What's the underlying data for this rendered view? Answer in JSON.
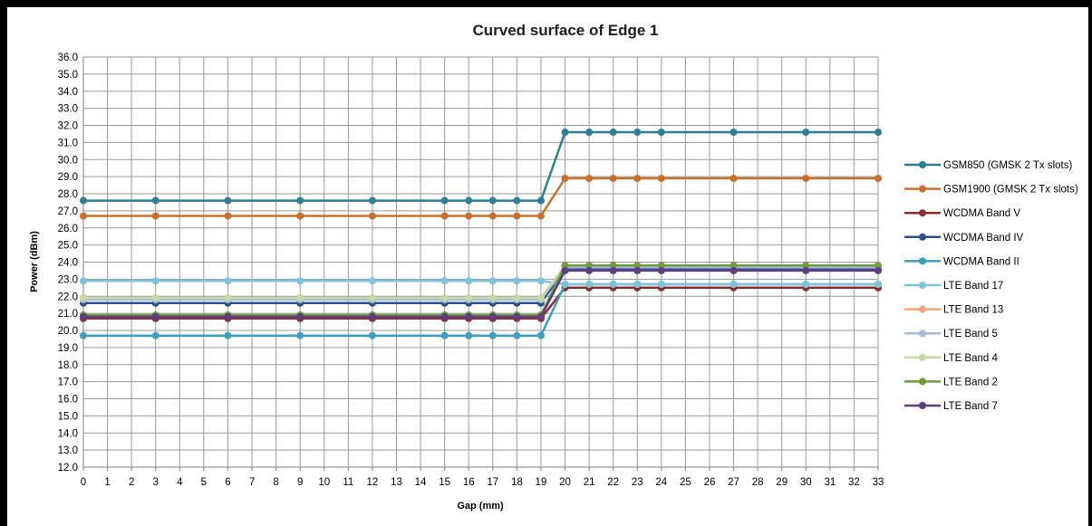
{
  "chart_data": {
    "type": "line",
    "title": "Curved surface of Edge 1",
    "xlabel": "Gap (mm)",
    "ylabel": "Power (dBm)",
    "x": [
      0,
      3,
      6,
      9,
      12,
      15,
      16,
      17,
      18,
      19,
      20,
      21,
      22,
      23,
      24,
      27,
      30,
      33
    ],
    "x_tick_labels": [
      "0",
      "1",
      "2",
      "3",
      "4",
      "5",
      "6",
      "7",
      "8",
      "9",
      "10",
      "11",
      "12",
      "13",
      "14",
      "15",
      "16",
      "17",
      "18",
      "19",
      "20",
      "21",
      "22",
      "23",
      "24",
      "25",
      "26",
      "27",
      "28",
      "29",
      "30",
      "31",
      "32",
      "33"
    ],
    "ylim": [
      12.0,
      36.0
    ],
    "y_tick_labels": [
      "12.0",
      "13.0",
      "14.0",
      "15.0",
      "16.0",
      "17.0",
      "18.0",
      "19.0",
      "20.0",
      "21.0",
      "22.0",
      "23.0",
      "24.0",
      "25.0",
      "26.0",
      "27.0",
      "28.0",
      "29.0",
      "30.0",
      "31.0",
      "32.0",
      "33.0",
      "34.0",
      "35.0",
      "36.0"
    ],
    "grid": true,
    "legend_position": "right",
    "series": [
      {
        "name": "GSM850  (GMSK 2 Tx slots)",
        "color": "#2e7e96",
        "values": [
          27.6,
          27.6,
          27.6,
          27.6,
          27.6,
          27.6,
          27.6,
          27.6,
          27.6,
          27.6,
          31.6,
          31.6,
          31.6,
          31.6,
          31.6,
          31.6,
          31.6,
          31.6
        ]
      },
      {
        "name": "GSM1900 (GMSK 2 Tx slots)",
        "color": "#c8702e",
        "values": [
          26.7,
          26.7,
          26.7,
          26.7,
          26.7,
          26.7,
          26.7,
          26.7,
          26.7,
          26.7,
          28.9,
          28.9,
          28.9,
          28.9,
          28.9,
          28.9,
          28.9,
          28.9
        ]
      },
      {
        "name": "WCDMA Band V",
        "color": "#8b2f2f",
        "values": [
          20.7,
          20.7,
          20.7,
          20.7,
          20.7,
          20.7,
          20.7,
          20.7,
          20.7,
          20.7,
          22.5,
          22.5,
          22.5,
          22.5,
          22.5,
          22.5,
          22.5,
          22.5
        ]
      },
      {
        "name": "WCDMA Band IV",
        "color": "#2f4f8f",
        "values": [
          21.6,
          21.6,
          21.6,
          21.6,
          21.6,
          21.6,
          21.6,
          21.6,
          21.6,
          21.6,
          23.6,
          23.6,
          23.6,
          23.6,
          23.6,
          23.6,
          23.6,
          23.6
        ]
      },
      {
        "name": "WCDMA Band II",
        "color": "#3f9fc0",
        "values": [
          19.7,
          19.7,
          19.7,
          19.7,
          19.7,
          19.7,
          19.7,
          19.7,
          19.7,
          19.7,
          22.7,
          22.7,
          22.7,
          22.7,
          22.7,
          22.7,
          22.7,
          22.7
        ]
      },
      {
        "name": "LTE Band 17",
        "color": "#7ec3d8",
        "values": [
          22.9,
          22.9,
          22.9,
          22.9,
          22.9,
          22.9,
          22.9,
          22.9,
          22.9,
          22.9,
          22.7,
          22.7,
          22.7,
          22.7,
          22.7,
          22.7,
          22.7,
          22.7
        ]
      },
      {
        "name": "LTE Band 13",
        "color": "#f2a478",
        "values": [
          21.9,
          21.9,
          21.9,
          21.9,
          21.9,
          21.9,
          21.9,
          21.9,
          21.9,
          21.9,
          23.7,
          23.7,
          23.7,
          23.7,
          23.7,
          23.7,
          23.7,
          23.7
        ]
      },
      {
        "name": "LTE Band 5",
        "color": "#a9b9d9",
        "values": [
          21.8,
          21.8,
          21.8,
          21.8,
          21.8,
          21.8,
          21.8,
          21.8,
          21.8,
          21.8,
          23.7,
          23.7,
          23.7,
          23.7,
          23.7,
          23.7,
          23.7,
          23.7
        ]
      },
      {
        "name": "LTE Band 4",
        "color": "#c3d8a2",
        "values": [
          21.9,
          21.9,
          21.9,
          21.9,
          21.9,
          21.9,
          21.9,
          21.9,
          21.9,
          21.9,
          23.8,
          23.8,
          23.8,
          23.8,
          23.8,
          23.8,
          23.8,
          23.8
        ]
      },
      {
        "name": "LTE Band 2",
        "color": "#6f9a3f",
        "values": [
          20.9,
          20.9,
          20.9,
          20.9,
          20.9,
          20.9,
          20.9,
          20.9,
          20.9,
          20.9,
          23.8,
          23.8,
          23.8,
          23.8,
          23.8,
          23.8,
          23.8,
          23.8
        ]
      },
      {
        "name": "LTE Band 7",
        "color": "#5c3f80",
        "values": [
          20.8,
          20.8,
          20.8,
          20.8,
          20.8,
          20.8,
          20.8,
          20.8,
          20.8,
          20.8,
          23.5,
          23.5,
          23.5,
          23.5,
          23.5,
          23.5,
          23.5,
          23.5
        ]
      }
    ]
  }
}
